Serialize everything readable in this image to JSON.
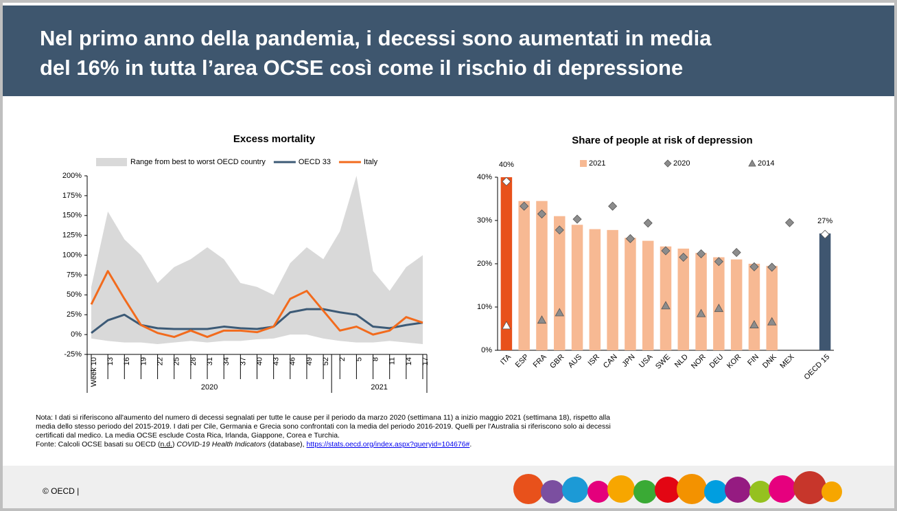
{
  "header": {
    "title": [
      "Nel primo anno della pandemia, i decessi sono aumentati in media",
      "del 16% in tutta l’area OCSE così come il rischio di depressione"
    ]
  },
  "chart_data": [
    {
      "type": "line",
      "title": "Excess mortality",
      "categories": [
        "Week 10",
        "13",
        "16",
        "19",
        "22",
        "25",
        "28",
        "31",
        "34",
        "37",
        "40",
        "43",
        "46",
        "49",
        "52",
        "2",
        "5",
        "8",
        "11",
        "14",
        "17"
      ],
      "year_labels": [
        "2020",
        "2021"
      ],
      "series": [
        {
          "name": "Range from best to worst OECD country",
          "color": "#d9d9d9",
          "values": [
            60,
            155,
            120,
            100,
            65,
            85,
            95,
            110,
            95,
            65,
            60,
            50,
            90,
            110,
            95,
            130,
            200,
            80,
            55,
            85,
            100
          ],
          "lower": [
            -5,
            -8,
            -10,
            -10,
            -12,
            -10,
            -8,
            -10,
            -8,
            -8,
            -6,
            -5,
            0,
            0,
            -5,
            -8,
            -10,
            -10,
            -8,
            -10,
            -12
          ]
        },
        {
          "name": "OECD 33",
          "color": "#3c5a76",
          "values": [
            2,
            18,
            25,
            12,
            8,
            7,
            7,
            7,
            10,
            8,
            7,
            10,
            28,
            32,
            32,
            28,
            25,
            10,
            8,
            12,
            15
          ]
        },
        {
          "name": "Italy",
          "color": "#f26b1d",
          "values": [
            38,
            80,
            45,
            12,
            2,
            -3,
            5,
            -3,
            5,
            5,
            3,
            10,
            45,
            55,
            30,
            5,
            10,
            0,
            5,
            22,
            15
          ]
        }
      ],
      "ylim": [
        -25,
        200
      ],
      "yticks": [
        {
          "value": -25,
          "label": "-25%"
        },
        {
          "value": 0,
          "label": "0%"
        },
        {
          "value": 25,
          "label": "25%"
        },
        {
          "value": 50,
          "label": "50%"
        },
        {
          "value": 75,
          "label": "75%"
        },
        {
          "value": 100,
          "label": "100%"
        },
        {
          "value": 125,
          "label": "125%"
        },
        {
          "value": 150,
          "label": "150%"
        },
        {
          "value": 175,
          "label": "175%"
        },
        {
          "value": 200,
          "label": "200%"
        }
      ],
      "grid": false
    },
    {
      "type": "bar",
      "title": "Share of people at risk of depression",
      "categories": [
        "ITA",
        "ESP",
        "FRA",
        "GBR",
        "AUS",
        "ISR",
        "CAN",
        "JPN",
        "USA",
        "SWE",
        "NLD",
        "NOR",
        "DEU",
        "KOR",
        "FIN",
        "DNK",
        "MEX",
        null,
        "OECD 15"
      ],
      "series": [
        {
          "name": "2021",
          "marker": "bar",
          "color": "#f7b993",
          "colors": [
            "#e8511b",
            "#f7b993",
            "#f7b993",
            "#f7b993",
            "#f7b993",
            "#f7b993",
            "#f7b993",
            "#f7b993",
            "#f7b993",
            "#f7b993",
            "#f7b993",
            "#f7b993",
            "#f7b993",
            "#f7b993",
            "#f7b993",
            "#f7b993",
            "#f7b993",
            "#f7b993",
            "#3f5670"
          ],
          "values": [
            40,
            34.5,
            34.5,
            31,
            29,
            28,
            27.8,
            26,
            25.3,
            24,
            23.5,
            22.5,
            21.5,
            21,
            20,
            19.5,
            null,
            null,
            27
          ],
          "value_labels": [
            "40%",
            null,
            null,
            null,
            null,
            null,
            null,
            null,
            null,
            null,
            null,
            null,
            null,
            null,
            null,
            null,
            null,
            null,
            "27%"
          ]
        },
        {
          "name": "2020",
          "marker": "diamond",
          "color": "#8c8c8c",
          "colors": [
            "#ffffff",
            "#8c8c8c",
            "#8c8c8c",
            "#8c8c8c",
            "#8c8c8c",
            "#8c8c8c",
            "#8c8c8c",
            "#8c8c8c",
            "#8c8c8c",
            "#8c8c8c",
            "#8c8c8c",
            "#8c8c8c",
            "#8c8c8c",
            "#8c8c8c",
            "#8c8c8c",
            "#8c8c8c",
            "#8c8c8c",
            "#8c8c8c",
            "#ffffff"
          ],
          "values": [
            39,
            33.3,
            31.5,
            27.8,
            30.3,
            null,
            33.3,
            25.8,
            29.4,
            23,
            21.5,
            22.3,
            20.5,
            22.6,
            19.3,
            19.2,
            29.5,
            null,
            26.8
          ]
        },
        {
          "name": "2014",
          "marker": "triangle",
          "color": "#8c8c8c",
          "colors": [
            "#ffffff",
            "#8c8c8c",
            "#8c8c8c",
            "#8c8c8c",
            "#8c8c8c",
            "#8c8c8c",
            "#8c8c8c",
            "#8c8c8c",
            "#8c8c8c",
            "#8c8c8c",
            "#8c8c8c",
            "#8c8c8c",
            "#8c8c8c",
            "#8c8c8c",
            "#8c8c8c",
            "#8c8c8c",
            "#8c8c8c",
            "#8c8c8c",
            "#8c8c8c"
          ],
          "values": [
            5.7,
            null,
            7,
            8.7,
            null,
            null,
            null,
            null,
            null,
            10.3,
            null,
            8.5,
            9.7,
            null,
            5.9,
            6.6,
            null,
            null,
            null
          ]
        }
      ],
      "ylim": [
        0,
        40
      ],
      "yticks": [
        {
          "value": 0,
          "label": "0%"
        },
        {
          "value": 10,
          "label": "10%"
        },
        {
          "value": 20,
          "label": "20%"
        },
        {
          "value": 30,
          "label": "30%"
        },
        {
          "value": 40,
          "label": "40%"
        }
      ],
      "grid": false
    }
  ],
  "note": {
    "lines": [
      "Nota: I dati si riferiscono all'aumento del numero di decessi segnalati per tutte le cause per il periodo da marzo 2020 (settimana 11) a inizio maggio 2021 (settimana 18), rispetto alla",
      "media dello stesso periodo del 2015-2019. I dati per Cile, Germania e Grecia sono confrontati con la media del periodo 2016-2019. Quelli per l'Australia si riferiscono solo ai decessi",
      "certificati dal medico. La media OCSE esclude Costa Rica, Irlanda, Giappone, Corea e Turchia."
    ],
    "source": [
      "Fonte: Calcoli OCSE basati su OECD (",
      "n.d.",
      ") ",
      "COVID-19 Health Indicators",
      " (database), ",
      "https://stats.oecd.org/index.aspx?queryid=104676#",
      "."
    ]
  },
  "footer": {
    "copyright": "© OECD |"
  }
}
